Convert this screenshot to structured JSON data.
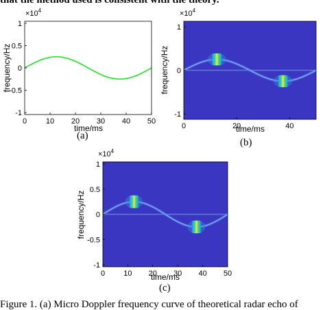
{
  "figure": {
    "top_text": "that the method used is consistent with the theory.",
    "caption": "Figure 1. (a) Micro Doppler frequency curve of theoretical radar echo of",
    "sub_labels": [
      "(a)",
      "(b)",
      "(c)"
    ]
  },
  "chart_data": [
    {
      "id": "a",
      "type": "line",
      "title": "",
      "xlabel": "time/ms",
      "ylabel": "frequency/Hz",
      "xlim": [
        0,
        50
      ],
      "ylim": [
        -10000,
        10000
      ],
      "x_ticks": [
        0,
        10,
        20,
        30,
        40,
        50
      ],
      "y_ticks": [
        1,
        0.5,
        0,
        -0.5,
        -1
      ],
      "y_exponent": "×10",
      "y_exponent_power": "4",
      "grid": false,
      "series": [
        {
          "color": "#1ee61e",
          "function": "sine",
          "amplitude": 2500,
          "period": 50,
          "phase": 0
        }
      ]
    },
    {
      "id": "b",
      "type": "heatmap",
      "title": "",
      "xlabel": "time/ms",
      "ylabel": "frequency/Hz",
      "xlim": [
        0,
        50
      ],
      "ylim": [
        -10000,
        10000
      ],
      "x_ticks": [
        0,
        20,
        40
      ],
      "y_ticks": [
        1,
        0,
        -1
      ],
      "y_exponent": "×10",
      "y_exponent_power": "4",
      "background_color": "#3b36c2",
      "curve": {
        "amplitude": 2500,
        "period": 50
      },
      "peaks": [
        {
          "t": 12.5,
          "f": 2500
        },
        {
          "t": 37.5,
          "f": -2500
        }
      ]
    },
    {
      "id": "c",
      "type": "heatmap",
      "title": "",
      "xlabel": "time/ms",
      "ylabel": "frequency/Hz",
      "xlim": [
        0,
        50
      ],
      "ylim": [
        -10000,
        10000
      ],
      "x_ticks": [
        0,
        10,
        20,
        30,
        40,
        50
      ],
      "y_ticks": [
        1,
        0.5,
        0,
        -0.5,
        -1
      ],
      "y_exponent": "×10",
      "y_exponent_power": "4",
      "background_color": "#3b36c2",
      "curve": {
        "amplitude": 2500,
        "period": 50
      },
      "peaks": [
        {
          "t": 12.5,
          "f": 2500
        },
        {
          "t": 37.5,
          "f": -2500
        }
      ]
    }
  ]
}
